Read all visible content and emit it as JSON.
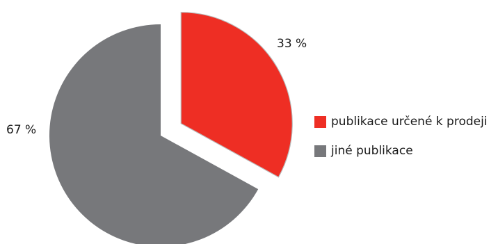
{
  "chart_data": {
    "type": "pie",
    "title": "",
    "slices": [
      {
        "label": "publikace určené k prodeji",
        "value": 33,
        "display": "33 %",
        "color": "#ee2e24",
        "exploded": true
      },
      {
        "label": "jiné publikace",
        "value": 67,
        "display": "67 %",
        "color": "#77787b",
        "exploded": false
      }
    ],
    "legend_position": "right",
    "start_angle_deg": 0,
    "direction": "clockwise"
  },
  "legend": {
    "items": [
      {
        "label": "publikace určené k prodeji",
        "color": "#ee2e24"
      },
      {
        "label": "jiné publikace",
        "color": "#77787b"
      }
    ]
  }
}
